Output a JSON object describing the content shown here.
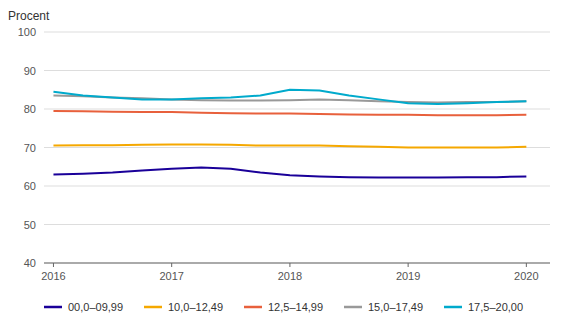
{
  "chart_data": {
    "type": "line",
    "y_label": "Procent",
    "x": [
      2016,
      2016.25,
      2016.5,
      2016.75,
      2017,
      2017.25,
      2017.5,
      2017.75,
      2018,
      2018.25,
      2018.5,
      2018.75,
      2019,
      2019.25,
      2019.5,
      2019.75,
      2020
    ],
    "xlim": [
      2015.92,
      2020.2
    ],
    "xticks": [
      2016,
      2017,
      2018,
      2019,
      2020
    ],
    "ylim": [
      40,
      100
    ],
    "yticks": [
      40,
      50,
      60,
      70,
      80,
      90,
      100
    ],
    "grid": true,
    "legend": "bottom",
    "series": [
      {
        "name": "00,0–09,99",
        "color": "#1a0099",
        "values": [
          63.0,
          63.2,
          63.5,
          64.0,
          64.5,
          64.8,
          64.5,
          63.5,
          62.8,
          62.5,
          62.3,
          62.2,
          62.2,
          62.2,
          62.3,
          62.3,
          62.5
        ]
      },
      {
        "name": "10,0–12,49",
        "color": "#f5a800",
        "values": [
          70.5,
          70.6,
          70.6,
          70.7,
          70.8,
          70.8,
          70.7,
          70.5,
          70.5,
          70.5,
          70.3,
          70.2,
          70.0,
          70.0,
          70.0,
          70.0,
          70.2
        ]
      },
      {
        "name": "12,5–14,99",
        "color": "#e8603c",
        "values": [
          79.5,
          79.4,
          79.3,
          79.2,
          79.2,
          79.0,
          78.9,
          78.8,
          78.8,
          78.7,
          78.6,
          78.5,
          78.5,
          78.4,
          78.4,
          78.4,
          78.5
        ]
      },
      {
        "name": "15,0–17,49",
        "color": "#999999",
        "values": [
          83.5,
          83.3,
          83.0,
          82.8,
          82.5,
          82.3,
          82.2,
          82.2,
          82.3,
          82.5,
          82.3,
          82.0,
          81.8,
          81.7,
          81.8,
          81.8,
          82.0
        ]
      },
      {
        "name": "17,5–20,00",
        "color": "#00aacc",
        "values": [
          84.5,
          83.5,
          83.0,
          82.5,
          82.5,
          82.8,
          83.0,
          83.5,
          85.0,
          84.8,
          83.5,
          82.5,
          81.5,
          81.3,
          81.5,
          81.8,
          82.0
        ]
      }
    ]
  }
}
